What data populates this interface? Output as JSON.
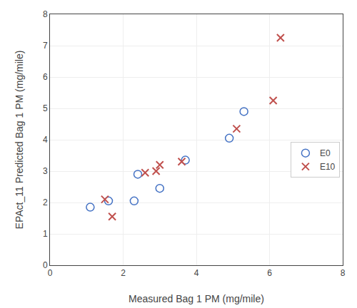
{
  "chart_data": {
    "type": "scatter",
    "xlabel": "Measured Bag 1 PM (mg/mile)",
    "ylabel": "EPAct_11 Predicted Bag 1 PM (mg/mile)",
    "series": [
      {
        "name": "E0",
        "color": "#4472C4",
        "marker": "open circle",
        "x": [
          1.1,
          1.6,
          2.3,
          2.4,
          3.0,
          3.7,
          4.9,
          5.3
        ],
        "values": [
          1.85,
          2.05,
          2.05,
          2.9,
          2.45,
          3.35,
          4.05,
          4.9
        ]
      },
      {
        "name": "E10",
        "color": "#C0504D",
        "marker": "x",
        "x": [
          1.5,
          1.7,
          2.6,
          2.9,
          3.0,
          3.6,
          5.1,
          6.1,
          6.3
        ],
        "values": [
          2.1,
          1.55,
          2.95,
          3.0,
          3.2,
          3.3,
          4.35,
          5.25,
          7.25
        ]
      }
    ],
    "xlim": [
      0,
      8
    ],
    "ylim": [
      0,
      8
    ],
    "xticks": [
      0,
      2,
      4,
      6,
      8
    ],
    "yticks": [
      0,
      1,
      2,
      3,
      4,
      5,
      6,
      7,
      8
    ],
    "grid": true,
    "legend": "right"
  }
}
